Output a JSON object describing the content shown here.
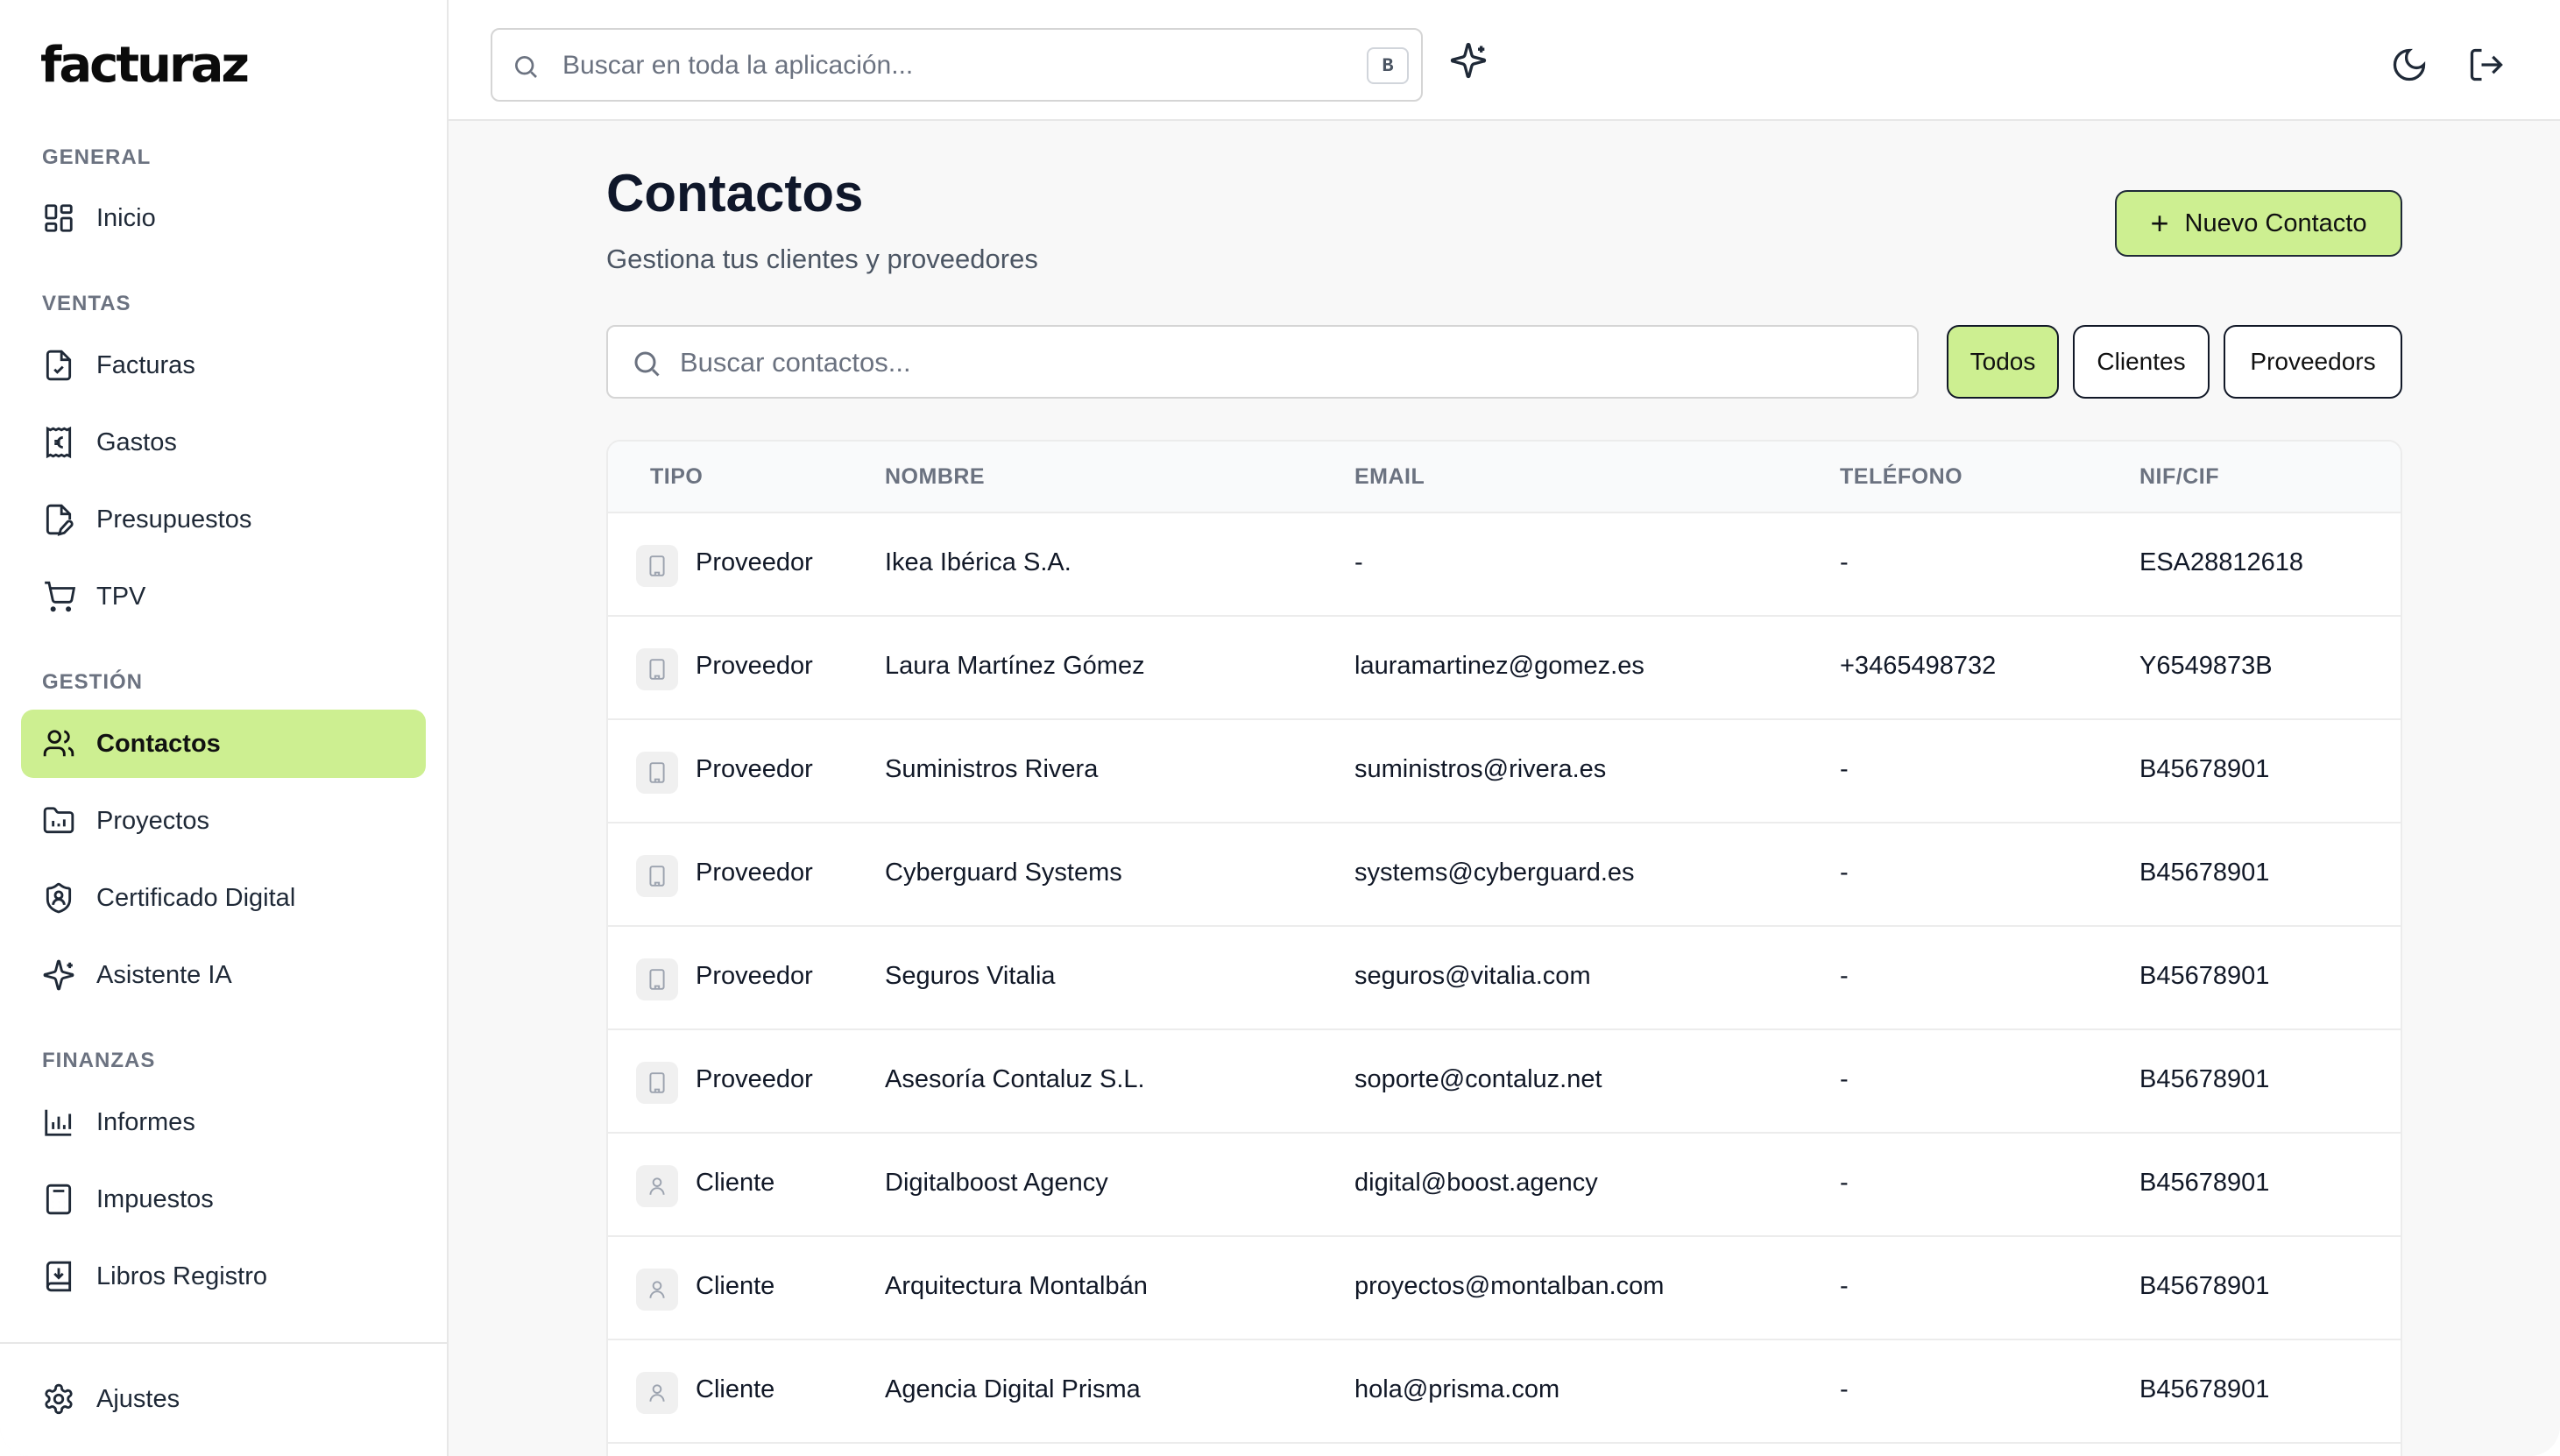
{
  "app": {
    "logo_text": "facturaz"
  },
  "sidebar": {
    "sections": [
      {
        "label": "GENERAL"
      },
      {
        "label": "VENTAS"
      },
      {
        "label": "GESTIÓN"
      },
      {
        "label": "FINANZAS"
      }
    ],
    "items": [
      {
        "label": "Inicio",
        "icon": "dashboard-icon"
      },
      {
        "label": "Facturas",
        "icon": "invoice-icon"
      },
      {
        "label": "Gastos",
        "icon": "receipt-euro-icon"
      },
      {
        "label": "Presupuestos",
        "icon": "file-pen-icon"
      },
      {
        "label": "TPV",
        "icon": "cart-icon"
      },
      {
        "label": "Contactos",
        "icon": "users-icon",
        "active": true
      },
      {
        "label": "Proyectos",
        "icon": "folder-icon"
      },
      {
        "label": "Certificado Digital",
        "icon": "shield-user-icon"
      },
      {
        "label": "Asistente IA",
        "icon": "sparkles-icon"
      },
      {
        "label": "Informes",
        "icon": "bar-chart-icon"
      },
      {
        "label": "Impuestos",
        "icon": "calculator-icon"
      },
      {
        "label": "Libros Registro",
        "icon": "book-download-icon"
      }
    ],
    "footer_item": {
      "label": "Ajustes",
      "icon": "gear-icon"
    }
  },
  "topbar": {
    "search_placeholder": "Buscar en toda la aplicación...",
    "search_shortcut": "B",
    "ai_icon": "sparkles-icon",
    "theme_icon": "moon-icon",
    "logout_icon": "logout-icon"
  },
  "main": {
    "title": "Contactos",
    "subtitle": "Gestiona tus clientes y proveedores",
    "new_button_label": "Nuevo Contacto",
    "search_placeholder": "Buscar contactos...",
    "filters": [
      {
        "label": "Todos",
        "active": true
      },
      {
        "label": "Clientes",
        "active": false
      },
      {
        "label": "Proveedors",
        "active": false
      }
    ]
  },
  "table": {
    "columns": [
      "TIPO",
      "NOMBRE",
      "EMAIL",
      "TELÉFONO",
      "NIF/CIF"
    ],
    "rows": [
      {
        "tipo": "Proveedor",
        "kind": "building-icon",
        "nombre": "Ikea Ibérica S.A.",
        "email": "-",
        "telefono": "-",
        "nif": "ESA28812618"
      },
      {
        "tipo": "Proveedor",
        "kind": "building-icon",
        "nombre": "Laura Martínez Gómez",
        "email": "lauramartinez@gomez.es",
        "telefono": "+3465498732",
        "nif": "Y6549873B"
      },
      {
        "tipo": "Proveedor",
        "kind": "building-icon",
        "nombre": "Suministros Rivera",
        "email": "suministros@rivera.es",
        "telefono": "-",
        "nif": "B45678901"
      },
      {
        "tipo": "Proveedor",
        "kind": "building-icon",
        "nombre": "Cyberguard Systems",
        "email": "systems@cyberguard.es",
        "telefono": "-",
        "nif": "B45678901"
      },
      {
        "tipo": "Proveedor",
        "kind": "building-icon",
        "nombre": "Seguros Vitalia",
        "email": "seguros@vitalia.com",
        "telefono": "-",
        "nif": "B45678901"
      },
      {
        "tipo": "Proveedor",
        "kind": "building-icon",
        "nombre": "Asesoría Contaluz S.L.",
        "email": "soporte@contaluz.net",
        "telefono": "-",
        "nif": "B45678901"
      },
      {
        "tipo": "Cliente",
        "kind": "user-icon",
        "nombre": "Digitalboost Agency",
        "email": "digital@boost.agency",
        "telefono": "-",
        "nif": "B45678901"
      },
      {
        "tipo": "Cliente",
        "kind": "user-icon",
        "nombre": "Arquitectura Montalbán",
        "email": "proyectos@montalban.com",
        "telefono": "-",
        "nif": "B45678901"
      },
      {
        "tipo": "Cliente",
        "kind": "user-icon",
        "nombre": "Agencia Digital Prisma",
        "email": "hola@prisma.com",
        "telefono": "-",
        "nif": "B45678901"
      }
    ]
  },
  "colors": {
    "accent": "#cdef91",
    "text": "#111827",
    "muted": "#6b7280",
    "border": "#e7e7e7"
  }
}
